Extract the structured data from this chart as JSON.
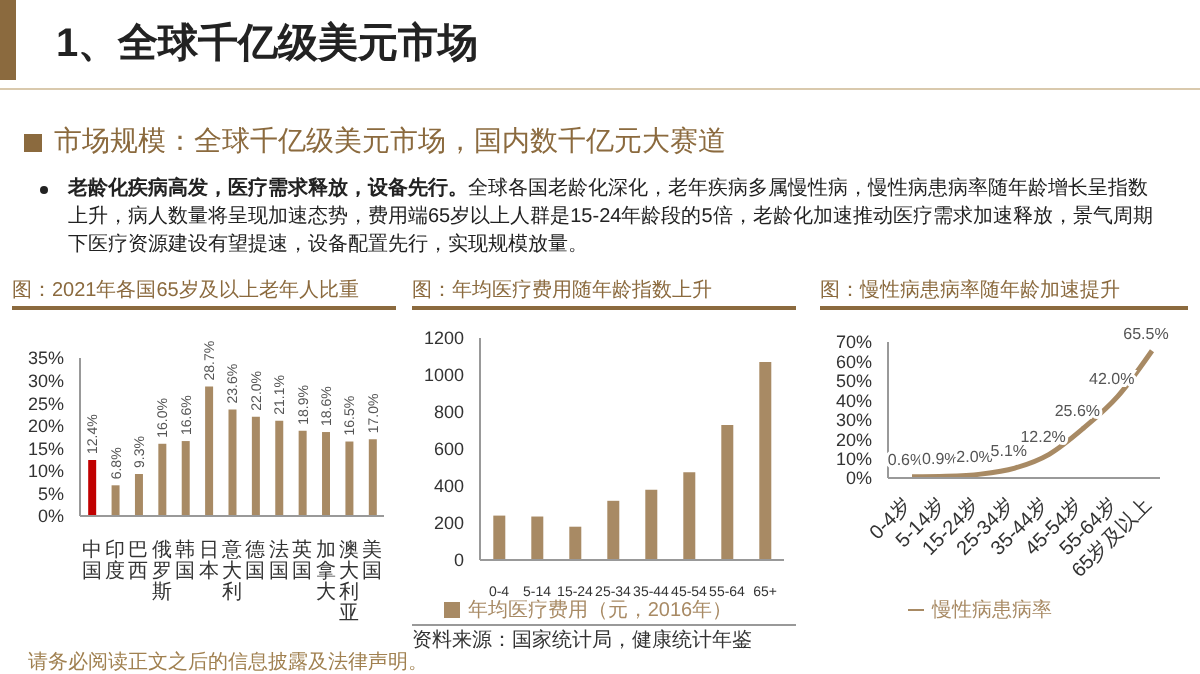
{
  "chart_data": [
    {
      "type": "other",
      "title": "1、全球千亿级美元市场",
      "subtitle": "市场规模：全球千亿级美元市场，国内数千亿元大赛道",
      "annotations": [
        "老龄化疾病高发，医疗需求释放，设备先行。",
        "全球各国老龄化深化，老年疾病多属慢性病，慢性病患病率随年龄增长呈指数上升，病人数量将呈现加速态势，费用端65岁以上人群是15-24年龄段的5倍，老龄化加速推动医疗需求加速释放，景气周期下医疗资源建设有望提速，设备配置先行，实现规模放量。",
        "请务必阅读正文之后的信息披露及法律声明。"
      ]
    },
    {
      "type": "bar",
      "title": "图：2021年各国65岁及以上老年人比重",
      "categories": [
        "中国",
        "印度",
        "巴西",
        "俄罗斯",
        "韩国",
        "日本",
        "意大利",
        "德国",
        "法国",
        "英国",
        "加拿大",
        "澳大利亚",
        "美国"
      ],
      "values": [
        12.4,
        6.8,
        9.3,
        16.0,
        16.6,
        28.7,
        23.6,
        22.0,
        21.1,
        18.9,
        18.6,
        16.5,
        17.0
      ],
      "colors": [
        "#c00000",
        "#a88a64",
        "#a88a64",
        "#a88a64",
        "#a88a64",
        "#a88a64",
        "#a88a64",
        "#a88a64",
        "#a88a64",
        "#a88a64",
        "#a88a64",
        "#a88a64",
        "#a88a64"
      ],
      "value_labels": [
        "12.4%",
        "6.8%",
        "9.3%",
        "16.0%",
        "16.6%",
        "28.7%",
        "23.6%",
        "22.0%",
        "21.1%",
        "18.9%",
        "18.6%",
        "16.5%",
        "17.0%"
      ],
      "ylim": [
        0,
        35
      ],
      "yticks": [
        {
          "value": 0,
          "label": "0%"
        },
        {
          "value": 5,
          "label": "5%"
        },
        {
          "value": 10,
          "label": "10%"
        },
        {
          "value": 15,
          "label": "15%"
        },
        {
          "value": 20,
          "label": "20%"
        },
        {
          "value": 25,
          "label": "25%"
        },
        {
          "value": 30,
          "label": "30%"
        },
        {
          "value": 35,
          "label": "35%"
        }
      ],
      "legend": false
    },
    {
      "type": "bar",
      "title": "图：年均医疗费用随年龄指数上升",
      "categories": [
        "0-4",
        "5-14",
        "15-24",
        "25-34",
        "35-44",
        "45-54",
        "55-64",
        "65+"
      ],
      "series": [
        {
          "name": "年均医疗费用（元，2016年）",
          "color": "#a88a64",
          "values": [
            240,
            235,
            180,
            320,
            380,
            475,
            730,
            1070
          ]
        }
      ],
      "ylim": [
        0,
        1200
      ],
      "yticks": [
        0,
        200,
        400,
        600,
        800,
        1000,
        1200
      ],
      "legend": "bottom",
      "annotations": [
        "资料来源：国家统计局，健康统计年鉴"
      ]
    },
    {
      "type": "line",
      "title": "图：慢性病患病率随年龄加速提升",
      "categories": [
        "0-4岁",
        "5-14岁",
        "15-24岁",
        "25-34岁",
        "35-44岁",
        "45-54岁",
        "55-64岁",
        "65岁及以上"
      ],
      "series": [
        {
          "name": "慢性病患病率",
          "color": "#a88a64",
          "values": [
            0.6,
            0.9,
            2.0,
            5.1,
            12.2,
            25.6,
            42.0,
            65.5
          ]
        }
      ],
      "value_labels": [
        "0.6%",
        "0.9%",
        "2.0%",
        "5.1%",
        "12.2%",
        "25.6%",
        "42.0%",
        "65.5%"
      ],
      "ylim": [
        0,
        70
      ],
      "yticks": [
        {
          "value": 0,
          "label": "0%"
        },
        {
          "value": 10,
          "label": "10%"
        },
        {
          "value": 20,
          "label": "20%"
        },
        {
          "value": 30,
          "label": "30%"
        },
        {
          "value": 40,
          "label": "40%"
        },
        {
          "value": 50,
          "label": "50%"
        },
        {
          "value": 60,
          "label": "60%"
        },
        {
          "value": 70,
          "label": "70%"
        }
      ],
      "legend": "bottom",
      "marker": "none"
    }
  ]
}
